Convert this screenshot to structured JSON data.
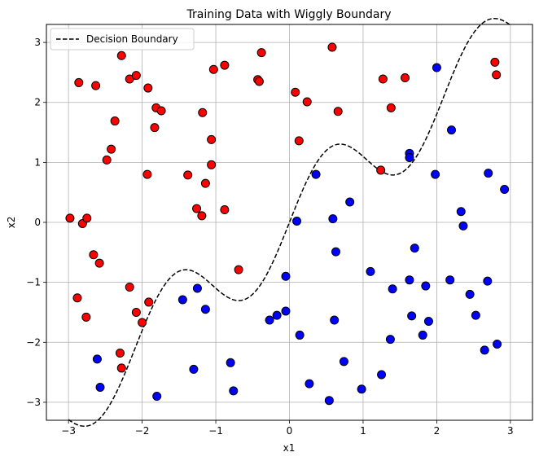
{
  "chart_data": {
    "type": "scatter",
    "title": "Training Data with Wiggly Boundary",
    "xlabel": "x1",
    "ylabel": "x2",
    "xlim": [
      -3.3,
      3.3
    ],
    "ylim": [
      -3.3,
      3.3
    ],
    "xticks": [
      -3,
      -2,
      -1,
      0,
      1,
      2,
      3
    ],
    "xtick_labels": [
      "−3",
      "−2",
      "−1",
      "0",
      "1",
      "2",
      "3"
    ],
    "yticks": [
      -3,
      -2,
      -1,
      0,
      1,
      2,
      3
    ],
    "ytick_labels": [
      "−3",
      "−2",
      "−1",
      "0",
      "1",
      "2",
      "3"
    ],
    "grid": true,
    "legend": {
      "position": "top-left",
      "entries": [
        "Decision Boundary"
      ]
    },
    "boundary": {
      "name": "Decision Boundary",
      "style": "dashed",
      "color": "#000000",
      "equation": "x2 = x1 + 0.7*sin(3*x1)",
      "x_range": [
        -3,
        3
      ]
    },
    "series": [
      {
        "color": "#ff0000",
        "points": [
          [
            -2.98,
            0.07
          ],
          [
            -2.86,
            2.33
          ],
          [
            -2.88,
            -1.26
          ],
          [
            -2.81,
            -0.02
          ],
          [
            -2.75,
            0.07
          ],
          [
            -2.76,
            -1.58
          ],
          [
            -2.63,
            2.28
          ],
          [
            -2.66,
            -0.54
          ],
          [
            -2.58,
            -0.68
          ],
          [
            -2.48,
            1.04
          ],
          [
            -2.42,
            1.22
          ],
          [
            -2.37,
            1.69
          ],
          [
            -2.28,
            2.78
          ],
          [
            -2.3,
            -2.18
          ],
          [
            -2.28,
            -2.43
          ],
          [
            -2.17,
            2.39
          ],
          [
            -2.17,
            -1.08
          ],
          [
            -2.08,
            2.45
          ],
          [
            -2.08,
            -1.5
          ],
          [
            -2.0,
            -1.67
          ],
          [
            -1.92,
            2.24
          ],
          [
            -1.93,
            0.8
          ],
          [
            -1.91,
            -1.33
          ],
          [
            -1.83,
            1.58
          ],
          [
            -1.81,
            1.91
          ],
          [
            -1.74,
            1.86
          ],
          [
            -1.38,
            0.79
          ],
          [
            -1.26,
            0.23
          ],
          [
            -1.19,
            0.11
          ],
          [
            -1.18,
            1.83
          ],
          [
            -1.14,
            0.65
          ],
          [
            -1.06,
            1.38
          ],
          [
            -1.06,
            0.96
          ],
          [
            -1.03,
            2.55
          ],
          [
            -0.88,
            2.62
          ],
          [
            -0.88,
            0.21
          ],
          [
            -0.69,
            -0.79
          ],
          [
            -0.43,
            2.38
          ],
          [
            -0.41,
            2.35
          ],
          [
            -0.38,
            2.83
          ],
          [
            0.08,
            2.17
          ],
          [
            0.13,
            1.36
          ],
          [
            0.24,
            2.01
          ],
          [
            0.58,
            2.92
          ],
          [
            0.66,
            1.85
          ],
          [
            1.24,
            0.87
          ],
          [
            1.27,
            2.39
          ],
          [
            1.38,
            1.91
          ],
          [
            1.57,
            2.41
          ],
          [
            2.79,
            2.67
          ],
          [
            2.81,
            2.46
          ]
        ]
      },
      {
        "color": "#0000ff",
        "points": [
          [
            -2.61,
            -2.28
          ],
          [
            -2.57,
            -2.75
          ],
          [
            -1.8,
            -2.9
          ],
          [
            -1.45,
            -1.29
          ],
          [
            -1.3,
            -2.45
          ],
          [
            -1.25,
            -1.1
          ],
          [
            -1.14,
            -1.45
          ],
          [
            -0.8,
            -2.34
          ],
          [
            -0.76,
            -2.81
          ],
          [
            -0.27,
            -1.63
          ],
          [
            -0.17,
            -1.55
          ],
          [
            -0.05,
            -0.9
          ],
          [
            -0.05,
            -1.48
          ],
          [
            0.1,
            0.02
          ],
          [
            0.14,
            -1.88
          ],
          [
            0.27,
            -2.69
          ],
          [
            0.36,
            0.8
          ],
          [
            0.54,
            -2.97
          ],
          [
            0.59,
            0.06
          ],
          [
            0.61,
            -1.63
          ],
          [
            0.63,
            -0.49
          ],
          [
            0.74,
            -2.32
          ],
          [
            0.82,
            0.34
          ],
          [
            0.98,
            -2.78
          ],
          [
            1.1,
            -0.82
          ],
          [
            1.25,
            -2.54
          ],
          [
            1.37,
            -1.95
          ],
          [
            1.4,
            -1.11
          ],
          [
            1.63,
            1.15
          ],
          [
            1.63,
            1.08
          ],
          [
            1.63,
            -0.96
          ],
          [
            1.66,
            -1.56
          ],
          [
            1.7,
            -0.43
          ],
          [
            1.81,
            -1.88
          ],
          [
            1.85,
            -1.06
          ],
          [
            1.89,
            -1.65
          ],
          [
            1.98,
            0.8
          ],
          [
            2.0,
            2.58
          ],
          [
            2.18,
            -0.96
          ],
          [
            2.2,
            1.54
          ],
          [
            2.33,
            0.18
          ],
          [
            2.36,
            -0.06
          ],
          [
            2.45,
            -1.2
          ],
          [
            2.53,
            -1.55
          ],
          [
            2.65,
            -2.13
          ],
          [
            2.69,
            -0.98
          ],
          [
            2.7,
            0.82
          ],
          [
            2.82,
            -2.03
          ],
          [
            2.92,
            0.55
          ]
        ]
      }
    ]
  }
}
